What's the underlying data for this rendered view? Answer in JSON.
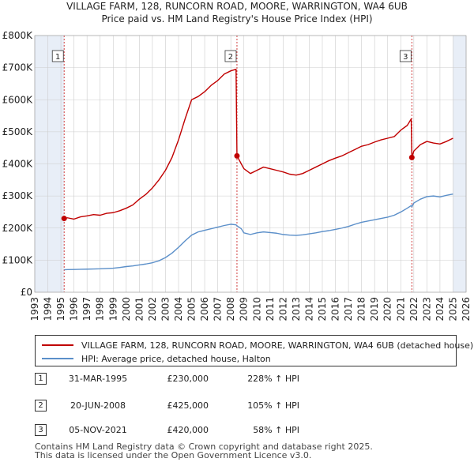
{
  "title_line1": "VILLAGE FARM, 128, RUNCORN ROAD, MOORE, WARRINGTON, WA4 6UB",
  "title_line2": "Price paid vs. HM Land Registry's House Price Index (HPI)",
  "legend": {
    "property": "VILLAGE FARM, 128, RUNCORN ROAD, MOORE, WARRINGTON, WA4 6UB (detached house)",
    "hpi": "HPI: Average price, detached house, Halton"
  },
  "colors": {
    "property": "#c00000",
    "hpi": "#5b8fc9",
    "marker_line": "#d04040",
    "shade": "#e8eef7",
    "grid": "#cccccc"
  },
  "sales": [
    {
      "num": "1",
      "date": "31-MAR-1995",
      "price": "£230,000",
      "hpi": "228% ↑ HPI"
    },
    {
      "num": "2",
      "date": "20-JUN-2008",
      "price": "£425,000",
      "hpi": "105% ↑ HPI"
    },
    {
      "num": "3",
      "date": "05-NOV-2021",
      "price": "£420,000",
      "hpi": "58% ↑ HPI"
    }
  ],
  "footer_line1": "Contains HM Land Registry data © Crown copyright and database right 2025.",
  "footer_line2": "This data is licensed under the Open Government Licence v3.0.",
  "chart_data": {
    "type": "line",
    "xlabel": "",
    "ylabel": "",
    "xlim": [
      1993,
      2026
    ],
    "ylim": [
      0,
      800000
    ],
    "x_ticks": [
      1993,
      1994,
      1995,
      1996,
      1997,
      1998,
      1999,
      2000,
      2001,
      2002,
      2003,
      2004,
      2005,
      2006,
      2007,
      2008,
      2009,
      2010,
      2011,
      2012,
      2013,
      2014,
      2015,
      2016,
      2017,
      2018,
      2019,
      2020,
      2021,
      2022,
      2023,
      2024,
      2025,
      2026
    ],
    "y_ticks": [
      {
        "value": 0,
        "label": "£0"
      },
      {
        "value": 100000,
        "label": "£100K"
      },
      {
        "value": 200000,
        "label": "£200K"
      },
      {
        "value": 300000,
        "label": "£300K"
      },
      {
        "value": 400000,
        "label": "£400K"
      },
      {
        "value": 500000,
        "label": "£500K"
      },
      {
        "value": 600000,
        "label": "£600K"
      },
      {
        "value": 700000,
        "label": "£700K"
      },
      {
        "value": 800000,
        "label": "£800K"
      }
    ],
    "grid": true,
    "shaded_periods": [
      [
        1993,
        1995.25
      ],
      [
        2025.0,
        2026
      ]
    ],
    "sale_markers": [
      {
        "label": "1",
        "x": 1995.25,
        "y": 230000
      },
      {
        "label": "2",
        "x": 2008.47,
        "y": 425000
      },
      {
        "label": "3",
        "x": 2021.85,
        "y": 420000
      }
    ],
    "series": [
      {
        "name": "VILLAGE FARM, 128, RUNCORN ROAD, MOORE, WARRINGTON, WA4 6UB (detached house)",
        "x": [
          1995.25,
          1995.5,
          1996,
          1996.5,
          1997,
          1997.5,
          1998,
          1998.5,
          1999,
          1999.5,
          2000,
          2000.5,
          2001,
          2001.5,
          2002,
          2002.5,
          2003,
          2003.5,
          2004,
          2004.5,
          2005,
          2005.5,
          2006,
          2006.5,
          2007,
          2007.5,
          2008,
          2008.4,
          2008.47,
          2008.8,
          2009,
          2009.5,
          2010,
          2010.5,
          2011,
          2011.5,
          2012,
          2012.5,
          2013,
          2013.5,
          2014,
          2014.5,
          2015,
          2015.5,
          2016,
          2016.5,
          2017,
          2017.5,
          2018,
          2018.5,
          2019,
          2019.5,
          2020,
          2020.5,
          2021,
          2021.5,
          2021.8,
          2021.85,
          2022,
          2022.5,
          2023,
          2023.5,
          2024,
          2024.5,
          2025
        ],
        "values": [
          230000,
          232000,
          228000,
          235000,
          238000,
          242000,
          240000,
          246000,
          248000,
          254000,
          262000,
          272000,
          290000,
          305000,
          325000,
          350000,
          380000,
          420000,
          475000,
          540000,
          600000,
          610000,
          625000,
          645000,
          660000,
          680000,
          690000,
          695000,
          425000,
          400000,
          385000,
          370000,
          380000,
          390000,
          385000,
          380000,
          375000,
          368000,
          365000,
          370000,
          380000,
          390000,
          400000,
          410000,
          418000,
          425000,
          435000,
          445000,
          455000,
          460000,
          468000,
          475000,
          480000,
          485000,
          505000,
          520000,
          540000,
          420000,
          440000,
          460000,
          470000,
          465000,
          462000,
          470000,
          480000
        ]
      },
      {
        "name": "HPI: Average price, detached house, Halton",
        "x": [
          1995.25,
          1995.5,
          1996,
          1996.5,
          1997,
          1997.5,
          1998,
          1998.5,
          1999,
          1999.5,
          2000,
          2000.5,
          2001,
          2001.5,
          2002,
          2002.5,
          2003,
          2003.5,
          2004,
          2004.5,
          2005,
          2005.5,
          2006,
          2006.5,
          2007,
          2007.5,
          2008,
          2008.4,
          2008.47,
          2008.8,
          2009,
          2009.5,
          2010,
          2010.5,
          2011,
          2011.5,
          2012,
          2012.5,
          2013,
          2013.5,
          2014,
          2014.5,
          2015,
          2015.5,
          2016,
          2016.5,
          2017,
          2017.5,
          2018,
          2018.5,
          2019,
          2019.5,
          2020,
          2020.5,
          2021,
          2021.5,
          2021.8,
          2021.85,
          2022,
          2022.5,
          2023,
          2023.5,
          2024,
          2024.5,
          2025
        ],
        "values": [
          70000,
          70500,
          71000,
          71500,
          72000,
          72500,
          73000,
          74000,
          75000,
          77000,
          80000,
          82000,
          85000,
          88000,
          92000,
          98000,
          108000,
          122000,
          140000,
          160000,
          178000,
          188000,
          193000,
          198000,
          203000,
          208000,
          212000,
          210000,
          207000,
          198000,
          185000,
          180000,
          185000,
          188000,
          186000,
          184000,
          180000,
          178000,
          177000,
          179000,
          182000,
          185000,
          189000,
          192000,
          196000,
          200000,
          205000,
          212000,
          218000,
          222000,
          226000,
          230000,
          234000,
          240000,
          250000,
          262000,
          270000,
          266000,
          278000,
          290000,
          298000,
          300000,
          297000,
          302000,
          306000
        ]
      }
    ]
  }
}
